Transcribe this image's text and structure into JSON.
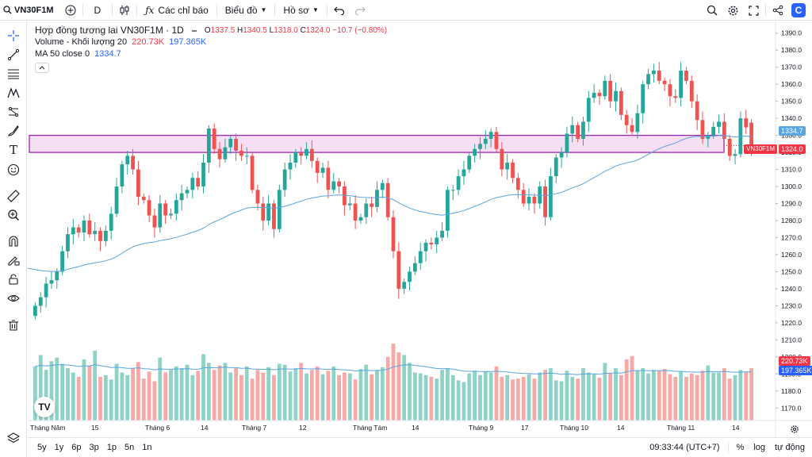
{
  "toolbar": {
    "symbol": "VN30F1M",
    "interval": "D",
    "indicators": "Các chỉ báo",
    "chart_type": "Biểu đồ",
    "profile": "Hồ sơ"
  },
  "legend": {
    "title": "Hợp đồng tương lai VN30F1M · 1D",
    "o_label": "O",
    "o": "1337.5",
    "h_label": "H",
    "h": "1340.5",
    "l_label": "L",
    "l": "1318.0",
    "c_label": "C",
    "c": "1324.0",
    "change": "−10.7 (−0.80%)",
    "volume_label": "Volume - Khối lượng 20",
    "volume_value": "220.73K",
    "volume_ma": "197.365K",
    "ma_label": "MA 50 close 0",
    "ma_value": "1334.7"
  },
  "price_tags": {
    "symbol": "VN30F1M",
    "ma": "1334.7",
    "last": "1324.0",
    "vol": "220.73K",
    "vol_ma": "197.365K"
  },
  "time_axis": [
    "Tháng Năm",
    "15",
    "Tháng 6",
    "14",
    "Tháng 7",
    "12",
    "Tháng Tám",
    "14",
    "Tháng 9",
    "17",
    "Tháng 10",
    "14",
    "Tháng 11",
    "14"
  ],
  "bottom": {
    "ranges": [
      "5y",
      "1y",
      "6p",
      "3p",
      "1p",
      "5n",
      "1n"
    ],
    "time": "09:33:44 (UTC+7)",
    "percent": "%",
    "log": "log",
    "auto": "tự động"
  },
  "colors": {
    "up": "#26a69a",
    "down": "#ef5350",
    "ma_line": "#5aa5e0",
    "zone_fill": "#f3d3ef",
    "zone_border": "#9c27b0"
  },
  "chart_data": {
    "type": "candlestick",
    "y_ticks": [
      1390,
      1380,
      1370,
      1360,
      1350,
      1340,
      1330,
      1320,
      1310,
      1300,
      1290,
      1280,
      1270,
      1260,
      1250,
      1240,
      1230,
      1220,
      1210,
      1200,
      1190,
      1180,
      1170
    ],
    "ylim": [
      1165,
      1395
    ],
    "zone": [
      1320,
      1330
    ],
    "ma50_start": 1252,
    "closes": [
      1230,
      1235,
      1243,
      1245,
      1250,
      1262,
      1272,
      1276,
      1273,
      1280,
      1272,
      1274,
      1268,
      1274,
      1284,
      1300,
      1313,
      1318,
      1310,
      1294,
      1292,
      1283,
      1276,
      1290,
      1283,
      1284,
      1292,
      1296,
      1298,
      1305,
      1300,
      1314,
      1334,
      1322,
      1316,
      1323,
      1328,
      1321,
      1318,
      1318,
      1298,
      1290,
      1280,
      1290,
      1275,
      1298,
      1310,
      1314,
      1320,
      1318,
      1322,
      1315,
      1308,
      1311,
      1298,
      1303,
      1300,
      1289,
      1290,
      1280,
      1282,
      1290,
      1288,
      1298,
      1302,
      1282,
      1262,
      1240,
      1244,
      1250,
      1255,
      1262,
      1267,
      1266,
      1270,
      1274,
      1298,
      1298,
      1306,
      1310,
      1318,
      1322,
      1325,
      1328,
      1332,
      1322,
      1310,
      1314,
      1305,
      1298,
      1290,
      1294,
      1290,
      1300,
      1282,
      1306,
      1317,
      1320,
      1331,
      1336,
      1328,
      1338,
      1352,
      1355,
      1353,
      1362,
      1350,
      1356,
      1342,
      1336,
      1332,
      1343,
      1360,
      1366,
      1368,
      1362,
      1360,
      1353,
      1352,
      1368,
      1362,
      1350,
      1339,
      1328,
      1330,
      1335,
      1338,
      1328,
      1318,
      1319,
      1340,
      1334.7,
      1324
    ],
    "volumes": [
      0.62,
      0.75,
      0.58,
      0.68,
      0.72,
      0.65,
      0.6,
      0.55,
      0.5,
      0.7,
      0.63,
      0.8,
      0.5,
      0.52,
      0.47,
      0.65,
      0.55,
      0.52,
      0.6,
      0.67,
      0.48,
      0.56,
      0.45,
      0.72,
      0.55,
      0.58,
      0.62,
      0.6,
      0.64,
      0.52,
      0.57,
      0.76,
      0.66,
      0.58,
      0.63,
      0.66,
      0.55,
      0.6,
      0.52,
      0.62,
      0.48,
      0.58,
      0.55,
      0.61,
      0.52,
      0.65,
      0.64,
      0.56,
      0.6,
      0.66,
      0.54,
      0.58,
      0.62,
      0.53,
      0.57,
      0.62,
      0.52,
      0.55,
      0.54,
      0.47,
      0.59,
      0.64,
      0.53,
      0.58,
      0.61,
      0.73,
      0.88,
      0.78,
      0.75,
      0.66,
      0.55,
      0.54,
      0.52,
      0.5,
      0.48,
      0.58,
      0.6,
      0.52,
      0.46,
      0.44,
      0.54,
      0.57,
      0.52,
      0.56,
      0.55,
      0.62,
      0.5,
      0.52,
      0.47,
      0.48,
      0.5,
      0.53,
      0.48,
      0.55,
      0.58,
      0.6,
      0.46,
      0.45,
      0.57,
      0.5,
      0.48,
      0.6,
      0.55,
      0.53,
      0.49,
      0.66,
      0.54,
      0.6,
      0.52,
      0.7,
      0.74,
      0.57,
      0.6,
      0.54,
      0.58,
      0.57,
      0.59,
      0.53,
      0.5,
      0.56,
      0.5,
      0.54,
      0.52,
      0.57,
      0.63,
      0.55,
      0.55,
      0.6,
      0.48,
      0.52,
      0.58,
      0.56,
      0.6
    ]
  }
}
